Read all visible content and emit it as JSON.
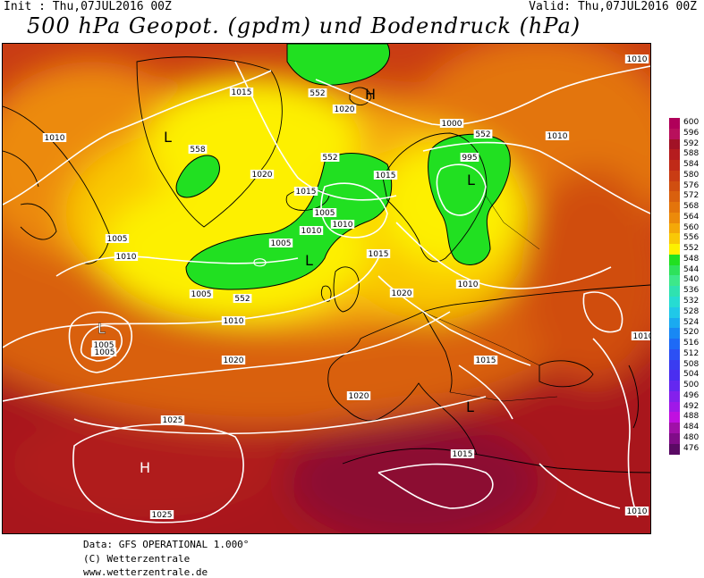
{
  "header": {
    "init": "Init : Thu,07JUL2016 00Z",
    "valid": "Valid: Thu,07JUL2016 00Z",
    "title": "500 hPa Geopot. (gpdm) und Bodendruck (hPa)"
  },
  "footer": {
    "line1": "Data: GFS OPERATIONAL 1.000°",
    "line2": "(C) Wetterzentrale",
    "line3": "www.wetterzentrale.de"
  },
  "legend": {
    "levels": [
      {
        "value": "600",
        "color": "#b0005a"
      },
      {
        "value": "596",
        "color": "#b8105c"
      },
      {
        "value": "592",
        "color": "#a11226"
      },
      {
        "value": "588",
        "color": "#b51c1f"
      },
      {
        "value": "584",
        "color": "#c02a18"
      },
      {
        "value": "580",
        "color": "#c93c14"
      },
      {
        "value": "576",
        "color": "#d04e10"
      },
      {
        "value": "572",
        "color": "#d9600e"
      },
      {
        "value": "568",
        "color": "#e3740b"
      },
      {
        "value": "564",
        "color": "#ec8a0a"
      },
      {
        "value": "560",
        "color": "#f4a808"
      },
      {
        "value": "556",
        "color": "#f9c806"
      },
      {
        "value": "552",
        "color": "#fdf000"
      },
      {
        "value": "548",
        "color": "#21e021"
      },
      {
        "value": "544",
        "color": "#2ee25b"
      },
      {
        "value": "540",
        "color": "#3de88a"
      },
      {
        "value": "536",
        "color": "#2fe2b0"
      },
      {
        "value": "532",
        "color": "#26dcd2"
      },
      {
        "value": "528",
        "color": "#20c8e8"
      },
      {
        "value": "524",
        "color": "#1aaaf0"
      },
      {
        "value": "520",
        "color": "#1888f4"
      },
      {
        "value": "516",
        "color": "#1e6af6"
      },
      {
        "value": "512",
        "color": "#2c50f4"
      },
      {
        "value": "508",
        "color": "#3a3cf0"
      },
      {
        "value": "504",
        "color": "#4a2ef0"
      },
      {
        "value": "500",
        "color": "#6428f0"
      },
      {
        "value": "496",
        "color": "#8420ec"
      },
      {
        "value": "492",
        "color": "#a018e8"
      },
      {
        "value": "488",
        "color": "#c010e0"
      },
      {
        "value": "484",
        "color": "#a010a8"
      },
      {
        "value": "480",
        "color": "#800c88"
      },
      {
        "value": "476",
        "color": "#5a0a64"
      }
    ]
  },
  "map": {
    "pressure_labels": [
      "1010",
      "1015",
      "1005",
      "1020",
      "1015",
      "1005",
      "1010",
      "1005",
      "1010",
      "1015",
      "1010",
      "1000",
      "995",
      "1010",
      "1020",
      "1005",
      "1010",
      "1015",
      "1010",
      "1020",
      "1005",
      "1000",
      "1005",
      "1010",
      "1015",
      "1020",
      "1020",
      "1015",
      "1010",
      "1025",
      "1025",
      "1010"
    ],
    "height_labels": [
      "552",
      "558",
      "552",
      "552",
      "552"
    ],
    "centers": {
      "L_greenland": "L",
      "L_iceland_south": "L",
      "L_scandinavia": "L",
      "L_atlantic": "L",
      "L_mediterranean": "L",
      "H_svalbard": "H",
      "H_azores": "H"
    }
  }
}
